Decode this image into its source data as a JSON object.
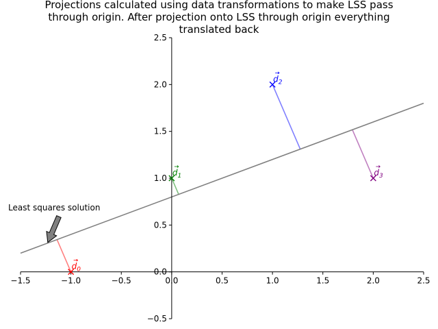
{
  "chart_data": {
    "type": "scatter",
    "title_lines": [
      "Projections calculated using data transformations to make LSS pass",
      "through origin. After projection onto LSS through origin everything",
      "translated back"
    ],
    "xlim": [
      -1.5,
      2.5
    ],
    "ylim": [
      -0.5,
      2.5
    ],
    "x_ticks": [
      -1.5,
      -1.0,
      -0.5,
      0.0,
      0.5,
      1.0,
      1.5,
      2.0,
      2.5
    ],
    "x_tick_labels": [
      "−1.5",
      "−1.0",
      "−0.5",
      "0.0",
      "0.5",
      "1.0",
      "1.5",
      "2.0",
      "2.5"
    ],
    "y_ticks": [
      -0.5,
      0.0,
      0.5,
      1.0,
      1.5,
      2.0,
      2.5
    ],
    "y_tick_labels": [
      "−0.5",
      "0.0",
      "0.5",
      "1.0",
      "1.5",
      "2.0",
      "2.5"
    ],
    "line": {
      "slope": 0.4,
      "intercept": 0.8,
      "color": "#808080"
    },
    "points": [
      {
        "label": "d0",
        "sub": "0",
        "x": -1.0,
        "y": 0.0,
        "color": "#ff0000",
        "proj": [
          -1.138,
          0.345
        ],
        "proj_color": "#ff8080"
      },
      {
        "label": "d1",
        "sub": "1",
        "x": 0.0,
        "y": 1.0,
        "color": "#008000",
        "proj": [
          0.069,
          0.828
        ],
        "proj_color": "#80c080"
      },
      {
        "label": "d2",
        "sub": "2",
        "x": 1.0,
        "y": 2.0,
        "color": "#0000ff",
        "proj": [
          1.276,
          1.31
        ],
        "proj_color": "#8080ff"
      },
      {
        "label": "d3",
        "sub": "3",
        "x": 2.0,
        "y": 1.0,
        "color": "#800080",
        "proj": [
          1.793,
          1.517
        ],
        "proj_color": "#c080c0"
      }
    ],
    "annotation": {
      "text": "Least squares solution",
      "target": [
        -1.25,
        0.3
      ]
    }
  }
}
